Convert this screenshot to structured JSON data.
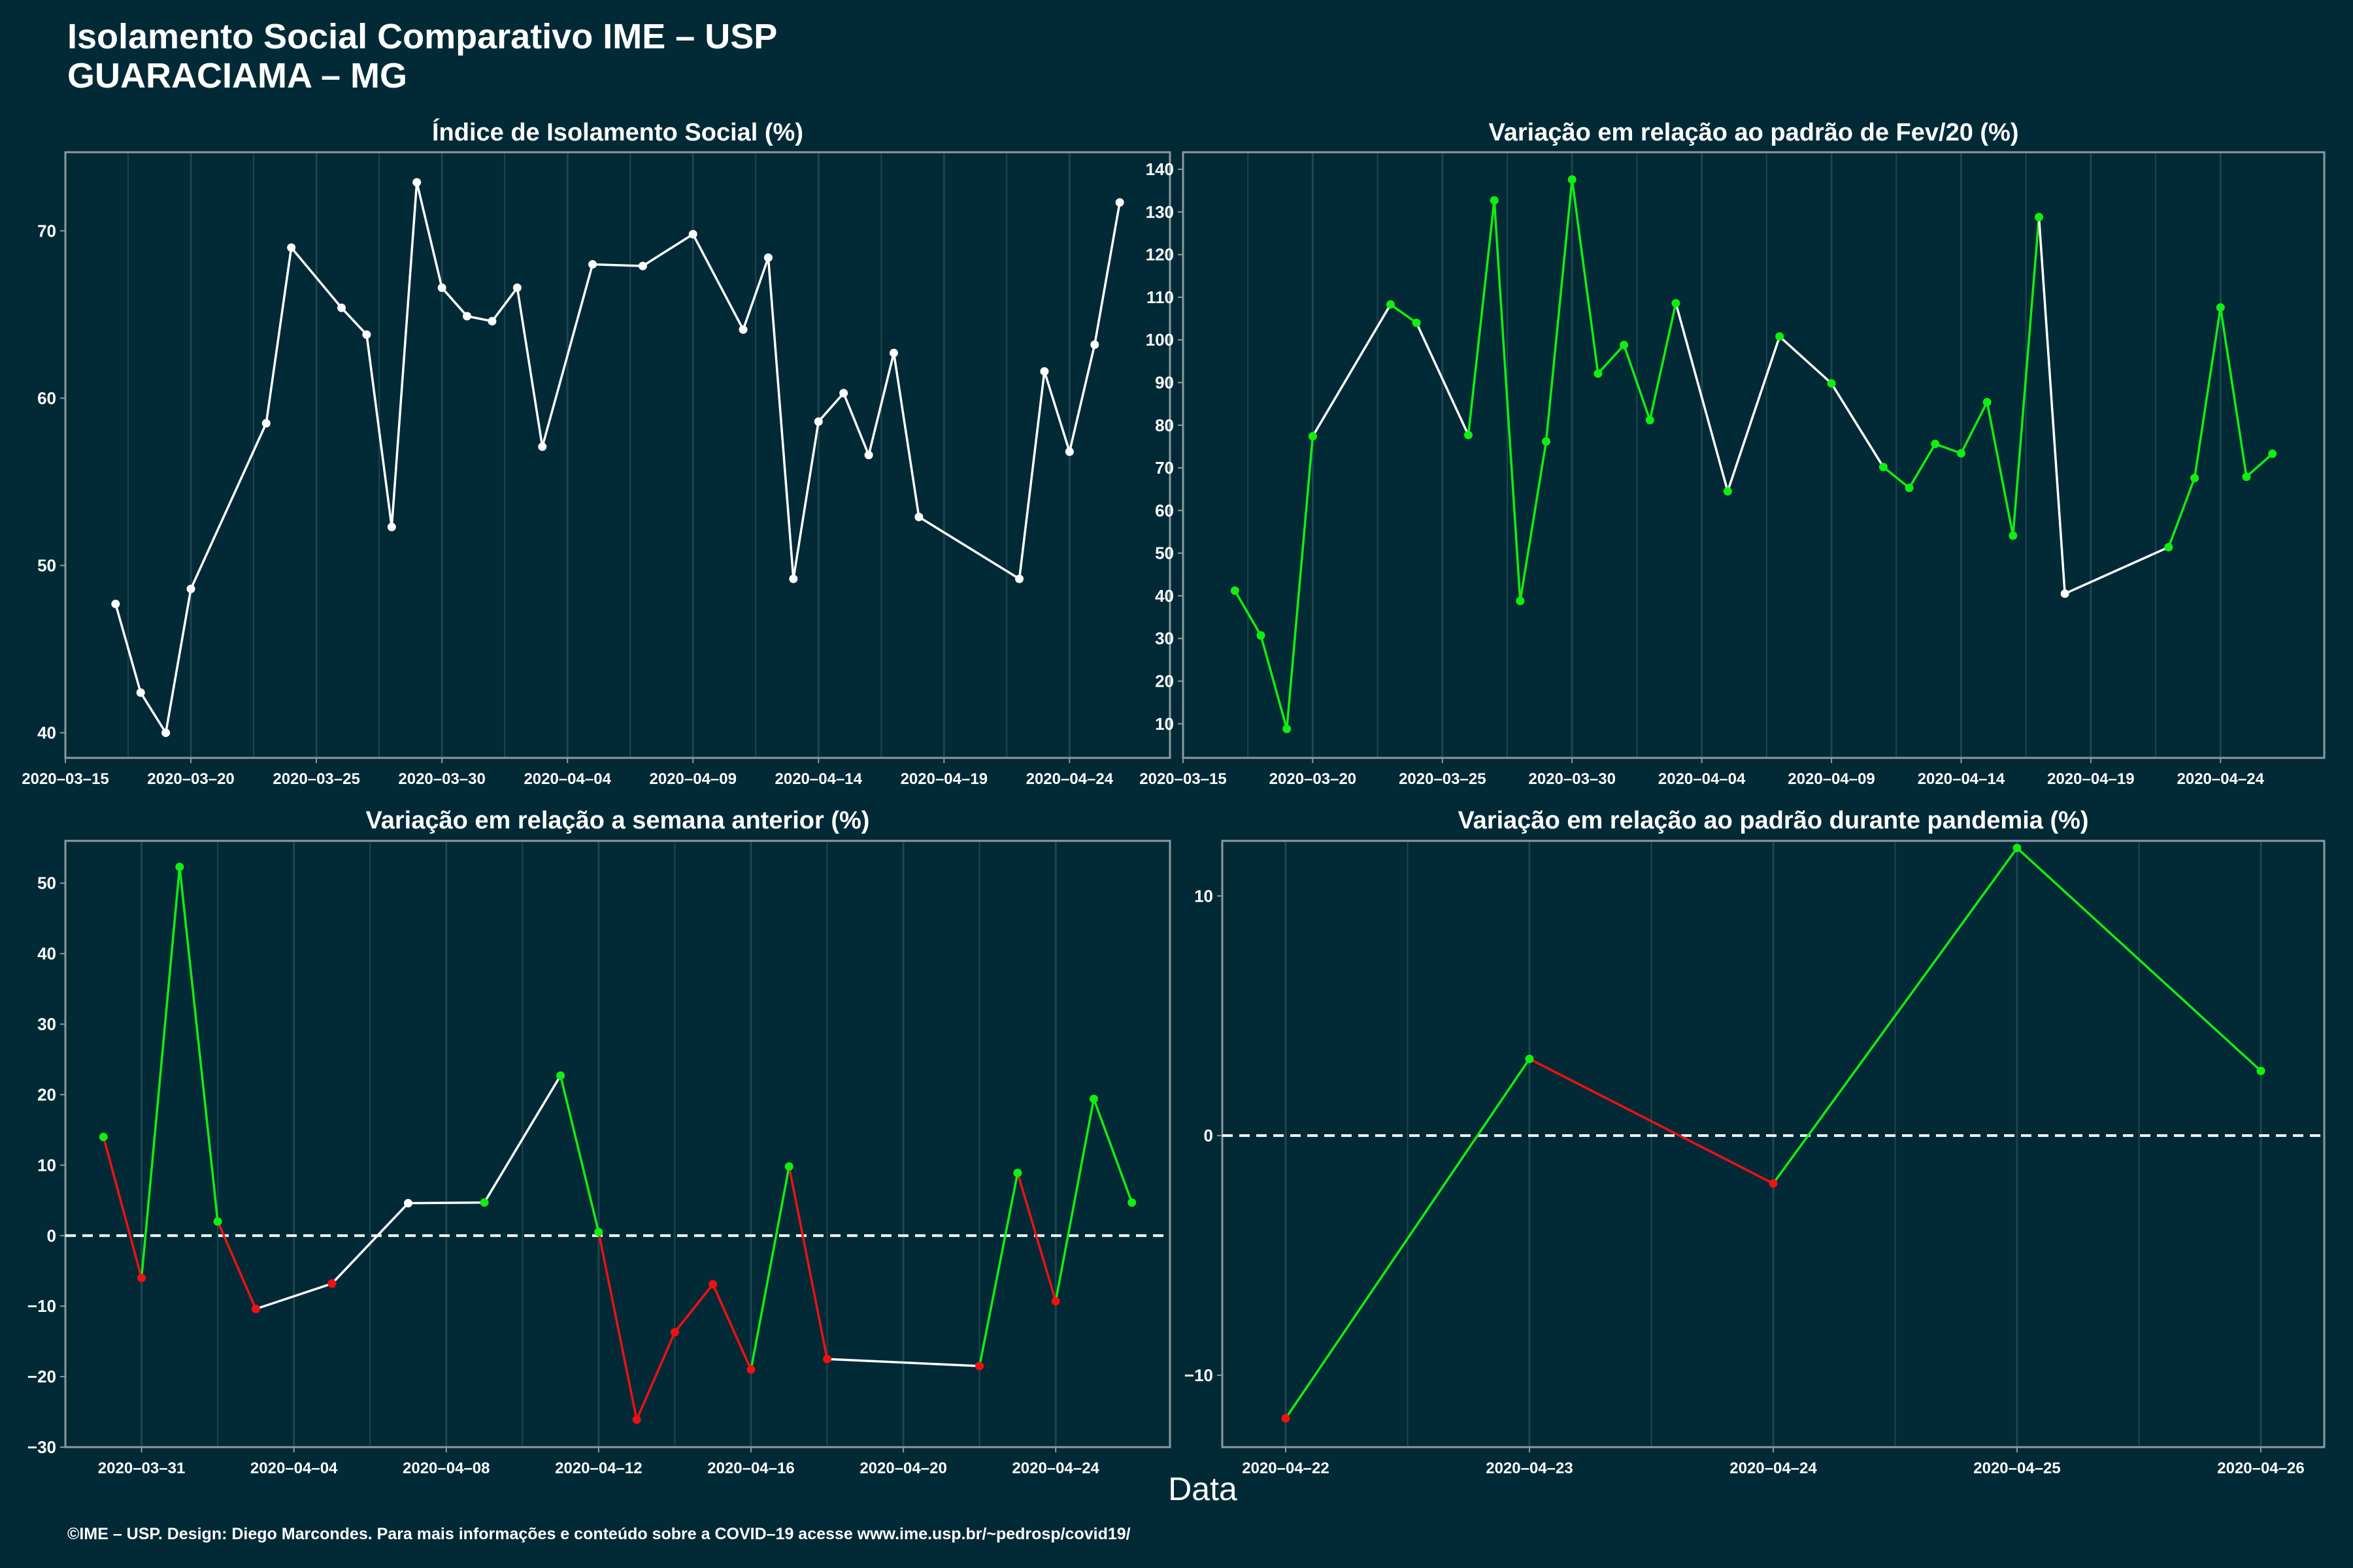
{
  "header": {
    "title": "Isolamento Social Comparativo IME – USP",
    "subtitle": "GUARACIAMA – MG"
  },
  "xlabel": "Data",
  "footer": "©IME – USP. Design: Diego Marcondes. Para mais informações e conteúdo sobre a COVID–19 acesse www.ime.usp.br/~pedrosp/covid19/",
  "colors": {
    "background": "#022a36",
    "plot_border": "#8a9aa0",
    "grid": "#1e4650",
    "increase": "#11ee11",
    "decrease": "#ee1111",
    "neutral": "#ffffff"
  },
  "chart_data": [
    {
      "type": "line",
      "title": "Índice de Isolamento Social (%)",
      "xlabel": "Data",
      "ylabel": "",
      "xlim": [
        "2020-03-15",
        "2020-04-28"
      ],
      "ylim": [
        38.5,
        74.7
      ],
      "xticks": [
        "2020-03-15",
        "2020-03-20",
        "2020-03-25",
        "2020-03-30",
        "2020-04-04",
        "2020-04-09",
        "2020-04-14",
        "2020-04-19",
        "2020-04-24"
      ],
      "yticks": [
        40,
        50,
        60,
        70
      ],
      "grid": true,
      "legend": "none",
      "points": [
        {
          "x": "2020-03-17",
          "y": 47.7,
          "color": "white"
        },
        {
          "x": "2020-03-18",
          "y": 42.4,
          "color": "white"
        },
        {
          "x": "2020-03-19",
          "y": 40.0,
          "color": "white"
        },
        {
          "x": "2020-03-20",
          "y": 48.6,
          "color": "white"
        },
        {
          "x": "2020-03-23",
          "y": 58.5,
          "color": "white"
        },
        {
          "x": "2020-03-24",
          "y": 69.0,
          "color": "white"
        },
        {
          "x": "2020-03-26",
          "y": 65.4,
          "color": "white"
        },
        {
          "x": "2020-03-27",
          "y": 63.8,
          "color": "white"
        },
        {
          "x": "2020-03-28",
          "y": 52.3,
          "color": "white"
        },
        {
          "x": "2020-03-29",
          "y": 72.9,
          "color": "white"
        },
        {
          "x": "2020-03-30",
          "y": 66.6,
          "color": "white"
        },
        {
          "x": "2020-03-31",
          "y": 64.9,
          "color": "white"
        },
        {
          "x": "2020-04-01",
          "y": 64.6,
          "color": "white"
        },
        {
          "x": "2020-04-02",
          "y": 66.6,
          "color": "white"
        },
        {
          "x": "2020-04-03",
          "y": 57.1,
          "color": "white"
        },
        {
          "x": "2020-04-05",
          "y": 68.0,
          "color": "white"
        },
        {
          "x": "2020-04-07",
          "y": 67.9,
          "color": "white"
        },
        {
          "x": "2020-04-09",
          "y": 69.8,
          "color": "white"
        },
        {
          "x": "2020-04-11",
          "y": 64.1,
          "color": "white"
        },
        {
          "x": "2020-04-12",
          "y": 68.4,
          "color": "white"
        },
        {
          "x": "2020-04-13",
          "y": 49.2,
          "color": "white"
        },
        {
          "x": "2020-04-14",
          "y": 58.6,
          "color": "white"
        },
        {
          "x": "2020-04-15",
          "y": 60.3,
          "color": "white"
        },
        {
          "x": "2020-04-16",
          "y": 56.6,
          "color": "white"
        },
        {
          "x": "2020-04-17",
          "y": 62.7,
          "color": "white"
        },
        {
          "x": "2020-04-18",
          "y": 52.9,
          "color": "white"
        },
        {
          "x": "2020-04-22",
          "y": 49.2,
          "color": "white"
        },
        {
          "x": "2020-04-23",
          "y": 61.6,
          "color": "white"
        },
        {
          "x": "2020-04-24",
          "y": 56.8,
          "color": "white"
        },
        {
          "x": "2020-04-25",
          "y": 63.2,
          "color": "white"
        },
        {
          "x": "2020-04-26",
          "y": 71.7,
          "color": "white"
        }
      ]
    },
    {
      "type": "line",
      "title": "Variação em relação ao padrão de Fev/20 (%)",
      "xlabel": "Data",
      "ylabel": "",
      "xlim": [
        "2020-03-15",
        "2020-04-28"
      ],
      "ylim": [
        2,
        144
      ],
      "xticks": [
        "2020-03-15",
        "2020-03-20",
        "2020-03-25",
        "2020-03-30",
        "2020-04-04",
        "2020-04-09",
        "2020-04-14",
        "2020-04-19",
        "2020-04-24"
      ],
      "yticks": [
        10,
        20,
        30,
        40,
        50,
        60,
        70,
        80,
        90,
        100,
        110,
        120,
        130,
        140
      ],
      "grid": true,
      "legend": "none",
      "points": [
        {
          "x": "2020-03-17",
          "y": 41.2,
          "color": "green"
        },
        {
          "x": "2020-03-18",
          "y": 30.7,
          "color": "green"
        },
        {
          "x": "2020-03-19",
          "y": 8.8,
          "color": "green"
        },
        {
          "x": "2020-03-20",
          "y": 77.4,
          "color": "green"
        },
        {
          "x": "2020-03-23",
          "y": 108.3,
          "color": "green"
        },
        {
          "x": "2020-03-24",
          "y": 104.0,
          "color": "green"
        },
        {
          "x": "2020-03-26",
          "y": 77.7,
          "color": "green"
        },
        {
          "x": "2020-03-27",
          "y": 132.7,
          "color": "green"
        },
        {
          "x": "2020-03-28",
          "y": 38.8,
          "color": "green"
        },
        {
          "x": "2020-03-29",
          "y": 76.2,
          "color": "green"
        },
        {
          "x": "2020-03-30",
          "y": 137.6,
          "color": "green"
        },
        {
          "x": "2020-03-31",
          "y": 92.1,
          "color": "green"
        },
        {
          "x": "2020-04-01",
          "y": 98.8,
          "color": "green"
        },
        {
          "x": "2020-04-02",
          "y": 81.2,
          "color": "green"
        },
        {
          "x": "2020-04-03",
          "y": 108.6,
          "color": "green"
        },
        {
          "x": "2020-04-05",
          "y": 64.5,
          "color": "green"
        },
        {
          "x": "2020-04-07",
          "y": 100.8,
          "color": "green"
        },
        {
          "x": "2020-04-09",
          "y": 89.8,
          "color": "green"
        },
        {
          "x": "2020-04-11",
          "y": 70.2,
          "color": "green"
        },
        {
          "x": "2020-04-12",
          "y": 65.3,
          "color": "green"
        },
        {
          "x": "2020-04-13",
          "y": 75.6,
          "color": "green"
        },
        {
          "x": "2020-04-14",
          "y": 73.4,
          "color": "green"
        },
        {
          "x": "2020-04-15",
          "y": 85.4,
          "color": "green"
        },
        {
          "x": "2020-04-16",
          "y": 54.1,
          "color": "green"
        },
        {
          "x": "2020-04-17",
          "y": 128.8,
          "color": "green"
        },
        {
          "x": "2020-04-18",
          "y": 40.5,
          "color": "white"
        },
        {
          "x": "2020-04-22",
          "y": 51.4,
          "color": "green"
        },
        {
          "x": "2020-04-23",
          "y": 67.6,
          "color": "green"
        },
        {
          "x": "2020-04-24",
          "y": 107.6,
          "color": "green"
        },
        {
          "x": "2020-04-25",
          "y": 67.9,
          "color": "green"
        },
        {
          "x": "2020-04-26",
          "y": 73.3,
          "color": "green"
        }
      ],
      "segment_colors": [
        "green",
        "green",
        "green",
        "white",
        "green",
        "white",
        "green",
        "green",
        "green",
        "green",
        "green",
        "green",
        "green",
        "green",
        "white",
        "white",
        "white",
        "white",
        "green",
        "green",
        "green",
        "green",
        "green",
        "green",
        "white",
        "white",
        "green",
        "green",
        "green",
        "green"
      ]
    },
    {
      "type": "line",
      "title": "Variação em relação a semana anterior (%)",
      "xlabel": "Data",
      "ylabel": "",
      "xlim": [
        "2020-03-29",
        "2020-04-27"
      ],
      "ylim": [
        -30,
        56
      ],
      "xticks": [
        "2020-03-31",
        "2020-04-04",
        "2020-04-08",
        "2020-04-12",
        "2020-04-16",
        "2020-04-20",
        "2020-04-24"
      ],
      "yticks": [
        -30,
        -20,
        -10,
        0,
        10,
        20,
        30,
        40,
        50
      ],
      "reference_line": 0,
      "grid": true,
      "legend": "none",
      "points": [
        {
          "x": "2020-03-30",
          "y": 14.0,
          "color": "green"
        },
        {
          "x": "2020-03-31",
          "y": -6.0,
          "color": "red"
        },
        {
          "x": "2020-04-01",
          "y": 52.3,
          "color": "green"
        },
        {
          "x": "2020-04-02",
          "y": 2.0,
          "color": "green"
        },
        {
          "x": "2020-04-03",
          "y": -10.4,
          "color": "red"
        },
        {
          "x": "2020-04-05",
          "y": -6.8,
          "color": "red"
        },
        {
          "x": "2020-04-07",
          "y": 4.6,
          "color": "white"
        },
        {
          "x": "2020-04-09",
          "y": 4.7,
          "color": "green"
        },
        {
          "x": "2020-04-11",
          "y": 22.7,
          "color": "green"
        },
        {
          "x": "2020-04-12",
          "y": 0.5,
          "color": "green"
        },
        {
          "x": "2020-04-13",
          "y": -26.1,
          "color": "red"
        },
        {
          "x": "2020-04-14",
          "y": -13.7,
          "color": "red"
        },
        {
          "x": "2020-04-15",
          "y": -6.9,
          "color": "red"
        },
        {
          "x": "2020-04-16",
          "y": -19.0,
          "color": "red"
        },
        {
          "x": "2020-04-17",
          "y": 9.8,
          "color": "green"
        },
        {
          "x": "2020-04-18",
          "y": -17.5,
          "color": "red"
        },
        {
          "x": "2020-04-22",
          "y": -18.5,
          "color": "red"
        },
        {
          "x": "2020-04-23",
          "y": 8.9,
          "color": "green"
        },
        {
          "x": "2020-04-24",
          "y": -9.3,
          "color": "red"
        },
        {
          "x": "2020-04-25",
          "y": 19.4,
          "color": "green"
        },
        {
          "x": "2020-04-26",
          "y": 4.7,
          "color": "green"
        }
      ],
      "segment_colors": [
        "red",
        "green",
        "green",
        "red",
        "white",
        "white",
        "white",
        "white",
        "green",
        "red",
        "red",
        "red",
        "red",
        "green",
        "red",
        "white",
        "green",
        "red",
        "green",
        "green"
      ]
    },
    {
      "type": "line",
      "title": "Variação em relação ao padrão durante pandemia (%)",
      "xlabel": "Data",
      "ylabel": "",
      "xlim": [
        "2020-04-22",
        "2020-04-26"
      ],
      "ylim": [
        -13,
        12.3
      ],
      "xticks": [
        "2020-04-22",
        "2020-04-23",
        "2020-04-24",
        "2020-04-25",
        "2020-04-26"
      ],
      "yticks": [
        -10,
        0,
        10
      ],
      "reference_line": 0,
      "grid": true,
      "legend": "none",
      "points": [
        {
          "x": "2020-04-22",
          "y": -11.8,
          "color": "red"
        },
        {
          "x": "2020-04-23",
          "y": 3.2,
          "color": "green"
        },
        {
          "x": "2020-04-24",
          "y": -2.0,
          "color": "red"
        },
        {
          "x": "2020-04-25",
          "y": 12.0,
          "color": "green"
        },
        {
          "x": "2020-04-26",
          "y": 2.7,
          "color": "green"
        }
      ],
      "segment_colors": [
        "green",
        "red",
        "green",
        "green"
      ]
    }
  ]
}
